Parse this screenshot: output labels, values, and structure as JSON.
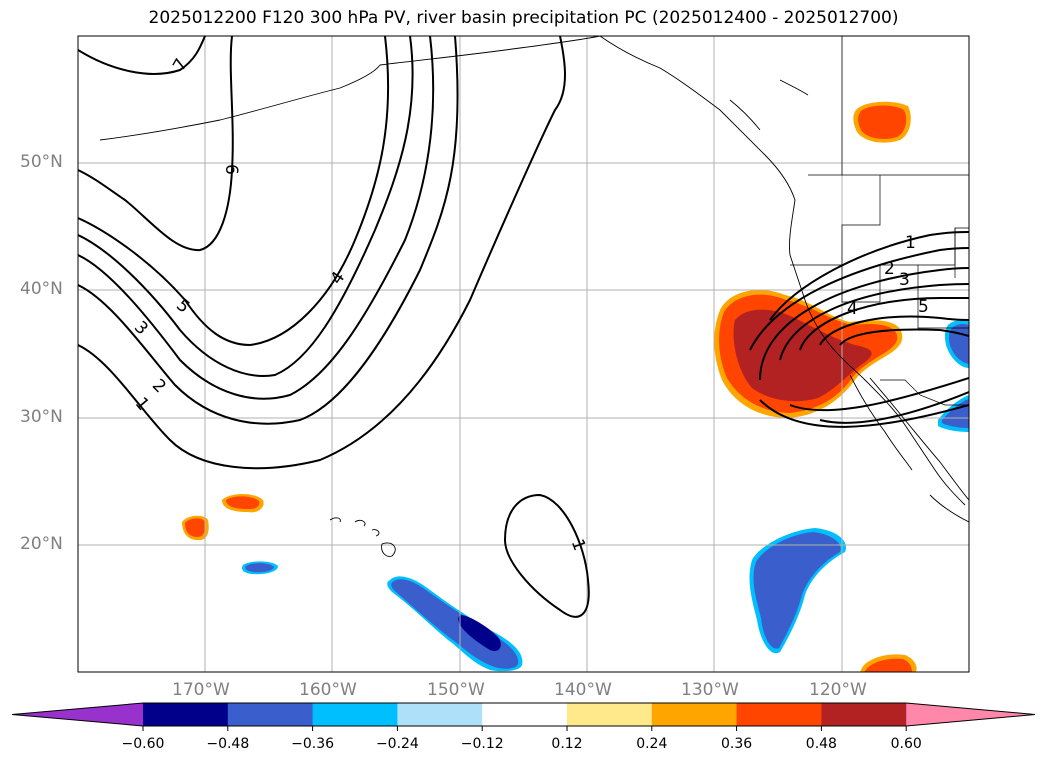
{
  "title": "2025012200 F120 300 hPa PV, river basin precipitation PC (2025012400 - 2025012700)",
  "map": {
    "lat_labels": [
      "50°N",
      "40°N",
      "30°N",
      "20°N"
    ],
    "lon_labels": [
      "170°W",
      "160°W",
      "150°W",
      "140°W",
      "130°W",
      "120°W"
    ],
    "contour_labels": {
      "c7": "7",
      "c6": "6",
      "c5": "5",
      "c4": "4",
      "c3": "3",
      "c2": "2",
      "c1": "1",
      "c1_subtropic": "1",
      "e1": "1",
      "e2": "2",
      "e3": "3",
      "e4": "4",
      "e5": "5"
    },
    "line_color": "#000000",
    "grid_color": "#b0b0b0"
  },
  "colorbar": {
    "ticks": [
      "−0.60",
      "−0.48",
      "−0.36",
      "−0.24",
      "−0.12",
      "0.12",
      "0.24",
      "0.36",
      "0.48",
      "0.60"
    ],
    "colors": [
      "#9932cc",
      "#00008b",
      "#3a5fcd",
      "#00bfff",
      "#afe0fa",
      "#ffffff",
      "#ffe98a",
      "#ffa500",
      "#ff4500",
      "#b22222",
      "#ff88aa"
    ]
  }
}
